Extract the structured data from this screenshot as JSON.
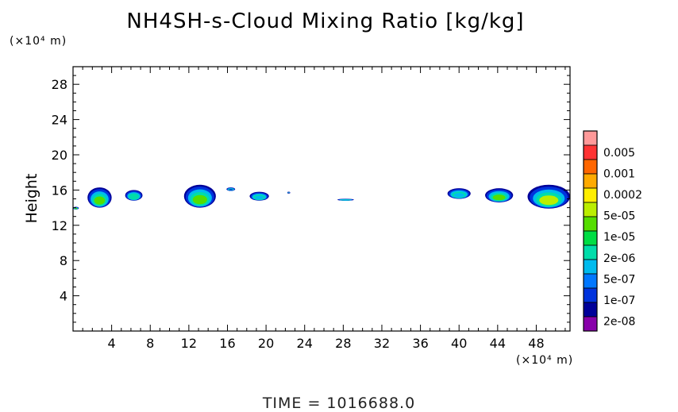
{
  "chart_data": {
    "type": "heatmap",
    "title": "NH4SH-s-Cloud Mixing Ratio [kg/kg]",
    "xlabel": "",
    "ylabel": "Height",
    "x_unit": "(×10⁴ m)",
    "y_unit": "(×10⁴ m)",
    "xlim": [
      0,
      51.5
    ],
    "ylim": [
      0,
      30
    ],
    "x_ticks": [
      4,
      8,
      12,
      16,
      20,
      24,
      28,
      32,
      36,
      40,
      44,
      48
    ],
    "y_ticks": [
      4,
      8,
      12,
      16,
      20,
      24,
      28
    ],
    "colorbar": {
      "labels": [
        "0.005",
        "0.001",
        "0.0002",
        "5e-05",
        "1e-05",
        "2e-06",
        "5e-07",
        "1e-07",
        "2e-08"
      ],
      "colors": [
        "#ff9999",
        "#ff3333",
        "#ff6600",
        "#ffaa00",
        "#ffee00",
        "#bbee00",
        "#55dd00",
        "#00dd44",
        "#00ddaa",
        "#00bbee",
        "#0077ff",
        "#0033dd",
        "#000099",
        "#8800aa"
      ]
    },
    "cloud_regions": [
      {
        "x": [
          1.5,
          4.0
        ],
        "y": [
          14.0,
          16.3
        ],
        "value": "1e-05"
      },
      {
        "x": [
          5.4,
          7.2
        ],
        "y": [
          14.8,
          16.0
        ],
        "value": "2e-06"
      },
      {
        "x": [
          11.5,
          14.8
        ],
        "y": [
          14.0,
          16.6
        ],
        "value": "1e-05"
      },
      {
        "x": [
          15.9,
          16.8
        ],
        "y": [
          15.9,
          16.3
        ],
        "value": "1e-07"
      },
      {
        "x": [
          18.3,
          20.3
        ],
        "y": [
          14.8,
          15.8
        ],
        "value": "5e-07"
      },
      {
        "x": [
          22.2,
          22.5
        ],
        "y": [
          15.6,
          15.8
        ],
        "value": "2e-08"
      },
      {
        "x": [
          27.4,
          29.1
        ],
        "y": [
          14.8,
          15.0
        ],
        "value": "5e-07"
      },
      {
        "x": [
          38.8,
          41.2
        ],
        "y": [
          15.0,
          16.2
        ],
        "value": "5e-07"
      },
      {
        "x": [
          42.7,
          45.6
        ],
        "y": [
          14.6,
          16.2
        ],
        "value": "1e-05"
      },
      {
        "x": [
          47.1,
          51.5
        ],
        "y": [
          13.9,
          16.6
        ],
        "value": "5e-05"
      },
      {
        "x": [
          0.0,
          0.6
        ],
        "y": [
          13.8,
          14.1
        ],
        "value": "1e-05"
      }
    ]
  },
  "footer": {
    "time_label": "TIME = 1016688.0"
  }
}
